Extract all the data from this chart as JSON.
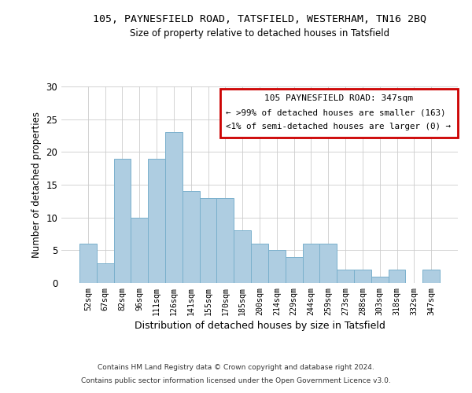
{
  "title": "105, PAYNESFIELD ROAD, TATSFIELD, WESTERHAM, TN16 2BQ",
  "subtitle": "Size of property relative to detached houses in Tatsfield",
  "xlabel": "Distribution of detached houses by size in Tatsfield",
  "ylabel": "Number of detached properties",
  "categories": [
    "52sqm",
    "67sqm",
    "82sqm",
    "96sqm",
    "111sqm",
    "126sqm",
    "141sqm",
    "155sqm",
    "170sqm",
    "185sqm",
    "200sqm",
    "214sqm",
    "229sqm",
    "244sqm",
    "259sqm",
    "273sqm",
    "288sqm",
    "303sqm",
    "318sqm",
    "332sqm",
    "347sqm"
  ],
  "values": [
    6,
    3,
    19,
    10,
    19,
    23,
    14,
    13,
    13,
    8,
    6,
    5,
    4,
    6,
    6,
    2,
    2,
    1,
    2,
    0,
    2
  ],
  "bar_color": "#aecde1",
  "bar_edge_color": "#7ab0cc",
  "ylim": [
    0,
    30
  ],
  "yticks": [
    0,
    5,
    10,
    15,
    20,
    25,
    30
  ],
  "legend_title": "105 PAYNESFIELD ROAD: 347sqm",
  "legend_line1": "← >99% of detached houses are smaller (163)",
  "legend_line2": "<1% of semi-detached houses are larger (0) →",
  "legend_box_color": "#cc0000",
  "footer_line1": "Contains HM Land Registry data © Crown copyright and database right 2024.",
  "footer_line2": "Contains public sector information licensed under the Open Government Licence v3.0.",
  "background_color": "#ffffff",
  "grid_color": "#cccccc"
}
